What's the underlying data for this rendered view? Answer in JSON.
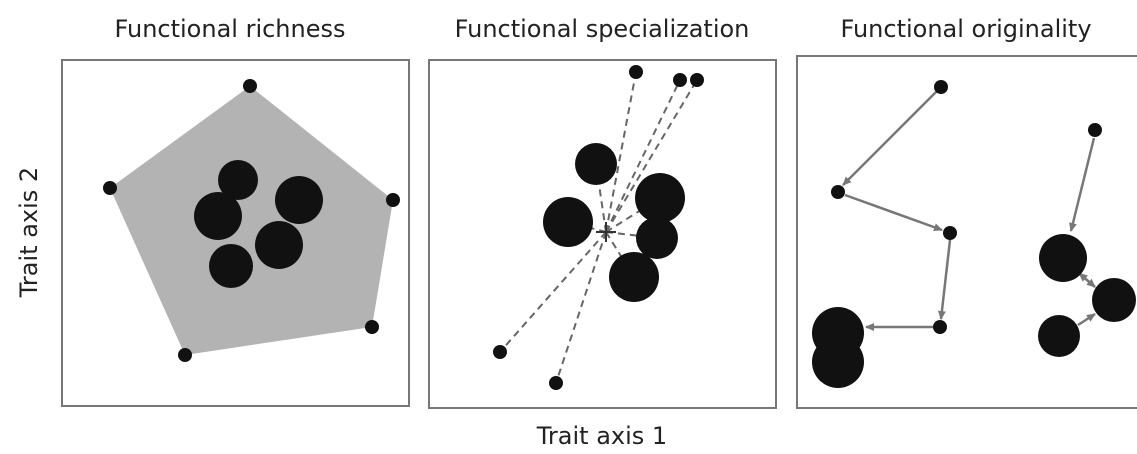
{
  "panels": [
    {
      "title": "Functional richness"
    },
    {
      "title": "Functional specialization"
    },
    {
      "title": "Functional originality"
    }
  ],
  "axes": {
    "y_label": "Trait axis 2",
    "x_label": "Trait axis 1"
  }
}
